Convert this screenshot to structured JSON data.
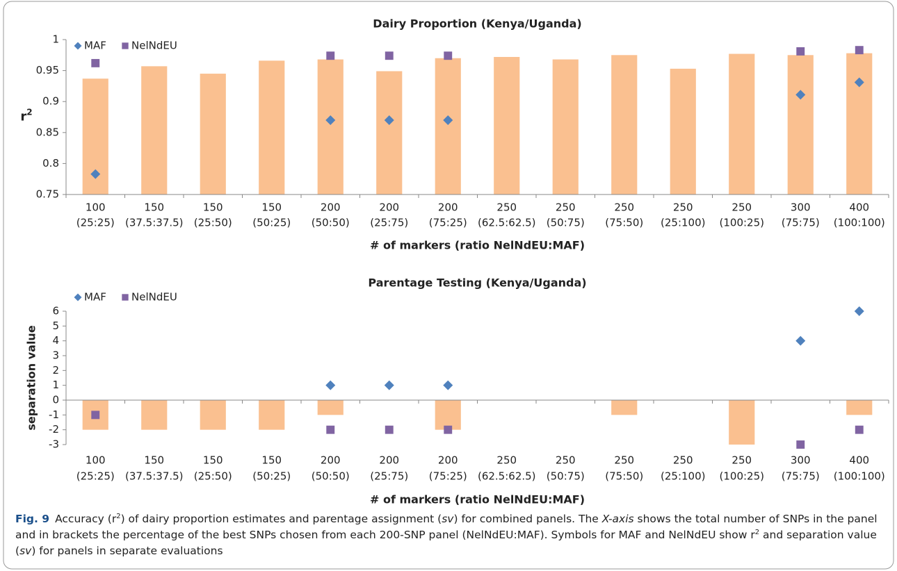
{
  "chart_data": [
    {
      "type": "bar_scatter",
      "title": "Dairy Proportion (Kenya/Uganda)",
      "y_label": "r",
      "y_label_sup": "2",
      "x_label": "# of markers (ratio NelNdEU:MAF)",
      "categories": [
        [
          "100",
          "(25:25)"
        ],
        [
          "150",
          "(37.5:37.5)"
        ],
        [
          "150",
          "(25:50)"
        ],
        [
          "150",
          "(50:25)"
        ],
        [
          "200",
          "(50:50)"
        ],
        [
          "200",
          "(25:75)"
        ],
        [
          "200",
          "(75:25)"
        ],
        [
          "250",
          "(62.5:62.5)"
        ],
        [
          "250",
          "(50:75)"
        ],
        [
          "250",
          "(75:50)"
        ],
        [
          "250",
          "(25:100)"
        ],
        [
          "250",
          "(100:25)"
        ],
        [
          "300",
          "(75:75)"
        ],
        [
          "400",
          "(100:100)"
        ]
      ],
      "bars": {
        "color": "#fac090",
        "values": [
          0.937,
          0.957,
          0.945,
          0.966,
          0.968,
          0.949,
          0.97,
          0.972,
          0.968,
          0.975,
          0.953,
          0.977,
          0.975,
          0.978
        ]
      },
      "series": [
        {
          "name": "MAF",
          "color": "#4f81bd",
          "marker": "diamond",
          "values": [
            0.783,
            null,
            null,
            null,
            0.87,
            0.87,
            0.87,
            null,
            null,
            null,
            null,
            null,
            0.911,
            0.931
          ]
        },
        {
          "name": "NelNdEU",
          "color": "#8064a2",
          "marker": "square",
          "values": [
            0.962,
            null,
            null,
            null,
            0.974,
            0.974,
            0.974,
            null,
            null,
            null,
            null,
            null,
            0.981,
            0.983
          ]
        }
      ],
      "ylim": [
        0.75,
        1
      ],
      "yticks": [
        0.75,
        0.8,
        0.85,
        0.9,
        0.95,
        1
      ],
      "legend": "top-left"
    },
    {
      "type": "bar_scatter",
      "title": "Parentage Testing (Kenya/Uganda)",
      "y_label": "separation value",
      "x_label": "# of markers (ratio NelNdEU:MAF)",
      "categories": [
        [
          "100",
          "(25:25)"
        ],
        [
          "150",
          "(37.5:37.5)"
        ],
        [
          "150",
          "(25:50)"
        ],
        [
          "150",
          "(50:25)"
        ],
        [
          "200",
          "(50:50)"
        ],
        [
          "200",
          "(25:75)"
        ],
        [
          "200",
          "(75:25)"
        ],
        [
          "250",
          "(62.5:62.5)"
        ],
        [
          "250",
          "(50:75)"
        ],
        [
          "250",
          "(75:50)"
        ],
        [
          "250",
          "(25:100)"
        ],
        [
          "250",
          "(100:25)"
        ],
        [
          "300",
          "(75:75)"
        ],
        [
          "400",
          "(100:100)"
        ]
      ],
      "bars": {
        "color": "#fac090",
        "values": [
          -2,
          -2,
          -2,
          -2,
          -1,
          0,
          -2,
          0,
          0,
          -1,
          0,
          -3,
          0,
          -1
        ]
      },
      "series": [
        {
          "name": "MAF",
          "color": "#4f81bd",
          "marker": "diamond",
          "values": [
            null,
            null,
            null,
            null,
            1,
            1,
            1,
            null,
            null,
            null,
            null,
            null,
            4,
            6
          ]
        },
        {
          "name": "NelNdEU",
          "color": "#8064a2",
          "marker": "square",
          "values": [
            -1,
            null,
            null,
            null,
            -2,
            -2,
            -2,
            null,
            null,
            null,
            null,
            null,
            -3,
            -2
          ]
        }
      ],
      "ylim": [
        -3,
        6
      ],
      "yticks": [
        -3,
        -2,
        -1,
        0,
        1,
        2,
        3,
        4,
        5,
        6
      ],
      "legend": "top-left"
    }
  ],
  "caption": {
    "segments": [
      {
        "text": "Fig. 9",
        "style": "bold"
      },
      {
        "text": "Accuracy (r"
      },
      {
        "text": "2",
        "style": "sup"
      },
      {
        "text": ") of dairy proportion estimates and parentage assignment ("
      },
      {
        "text": "sv",
        "style": "italic"
      },
      {
        "text": ") for combined panels. The "
      },
      {
        "text": "X-axis",
        "style": "italic"
      },
      {
        "text": " shows the total number of SNPs in the panel and in brackets the percentage of the best SNPs chosen from each 200-SNP panel (NelNdEU:MAF). Symbols for MAF and NelNdEU show r"
      },
      {
        "text": "2",
        "style": "sup"
      },
      {
        "text": " and separation value ("
      },
      {
        "text": "sv",
        "style": "italic"
      },
      {
        "text": ") for panels in separate evaluations"
      }
    ]
  }
}
